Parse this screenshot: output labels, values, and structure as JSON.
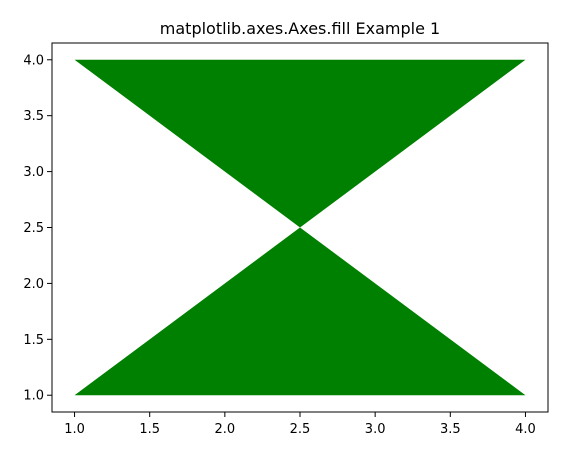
{
  "chart_data": {
    "type": "area",
    "title": "matplotlib.axes.Axes.fill Example 1",
    "xlabel": "",
    "ylabel": "",
    "xlim": [
      0.85,
      4.15
    ],
    "ylim": [
      0.85,
      4.15
    ],
    "x_ticks": [
      "1.0",
      "1.5",
      "2.0",
      "2.5",
      "3.0",
      "3.5",
      "4.0"
    ],
    "y_ticks": [
      "1.0",
      "1.5",
      "2.0",
      "2.5",
      "3.0",
      "3.5",
      "4.0"
    ],
    "grid": false,
    "series": [
      {
        "x": [
          1,
          4,
          1,
          4
        ],
        "y": [
          1,
          1,
          4,
          4
        ],
        "color": "#008000"
      }
    ]
  }
}
